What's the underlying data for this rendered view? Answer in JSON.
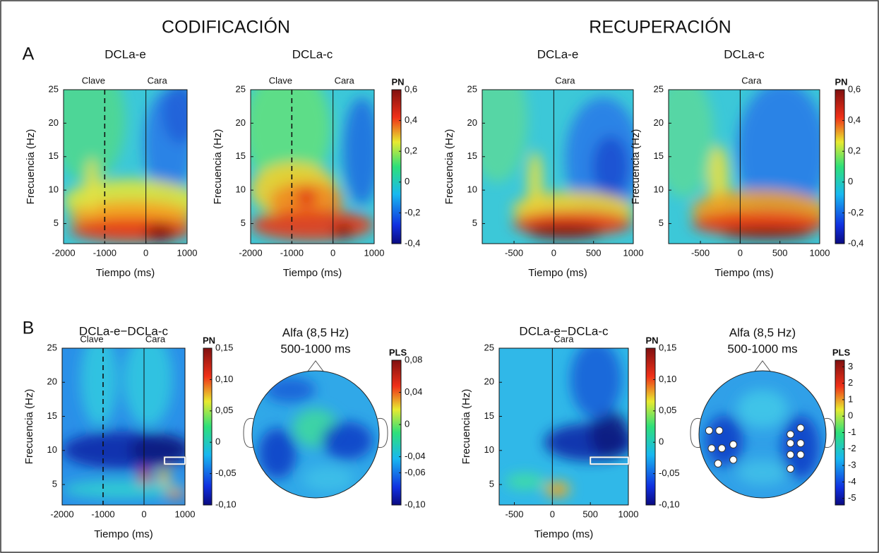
{
  "figure": {
    "headings": [
      "CODIFICACIÓN",
      "RECUPERACIÓN"
    ],
    "panel_labels": [
      "A",
      "B"
    ]
  },
  "chart_data": [
    {
      "type": "heatmap",
      "title": "DCLa-e",
      "xlabel": "Tiempo (ms)",
      "ylabel": "Frecuencia (Hz)",
      "colormap": "jet",
      "xlim": [
        -2000,
        1000
      ],
      "xticks": [
        -2000,
        -1000,
        0,
        1000
      ],
      "ylim": [
        2,
        25
      ],
      "yticks": [
        5,
        10,
        15,
        20,
        25
      ],
      "annotations": [
        {
          "x": -1000,
          "label": "Clave",
          "style": "dashed"
        },
        {
          "x": 0,
          "label": "Cara",
          "style": "solid"
        }
      ]
    },
    {
      "type": "heatmap",
      "title": "DCLa-c",
      "xlabel": "Tiempo (ms)",
      "ylabel": "Frecuencia (Hz)",
      "colormap": "jet",
      "xlim": [
        -2000,
        1000
      ],
      "xticks": [
        -2000,
        -1000,
        0,
        1000
      ],
      "ylim": [
        2,
        25
      ],
      "yticks": [
        5,
        10,
        15,
        20,
        25
      ],
      "annotations": [
        {
          "x": -1000,
          "label": "Clave",
          "style": "dashed"
        },
        {
          "x": 0,
          "label": "Cara",
          "style": "solid"
        }
      ]
    },
    {
      "type": "colorbar",
      "label": "PN",
      "colormap": "jet",
      "ylim": [
        -0.4,
        0.6
      ],
      "yticks": [
        {
          "value": 0.6,
          "label": "0,6"
        },
        {
          "value": 0.4,
          "label": "0,4"
        },
        {
          "value": 0.2,
          "label": "0,2"
        },
        0,
        {
          "value": -0.2,
          "label": "-0,2"
        },
        {
          "value": -0.4,
          "label": "-0,4"
        }
      ]
    },
    {
      "type": "heatmap",
      "title": "DCLa-e",
      "xlabel": "Tiempo (ms)",
      "ylabel": "Frecuencia (Hz)",
      "colormap": "jet",
      "xlim": [
        -900,
        1000
      ],
      "xticks": [
        -500,
        0,
        500,
        1000
      ],
      "ylim": [
        2,
        25
      ],
      "yticks": [
        5,
        10,
        15,
        20,
        25
      ],
      "annotations": [
        {
          "x": 0,
          "label": "Cara",
          "style": "solid"
        }
      ]
    },
    {
      "type": "heatmap",
      "title": "DCLa-c",
      "xlabel": "Tiempo (ms)",
      "ylabel": "Frecuencia (Hz)",
      "colormap": "jet",
      "xlim": [
        -900,
        1000
      ],
      "xticks": [
        -500,
        0,
        500,
        1000
      ],
      "ylim": [
        2,
        25
      ],
      "yticks": [
        5,
        10,
        15,
        20,
        25
      ],
      "annotations": [
        {
          "x": 0,
          "label": "Cara",
          "style": "solid"
        }
      ]
    },
    {
      "type": "colorbar",
      "label": "PN",
      "colormap": "jet",
      "ylim": [
        -0.4,
        0.6
      ],
      "yticks": [
        {
          "value": 0.6,
          "label": "0,6"
        },
        {
          "value": 0.4,
          "label": "0,4"
        },
        {
          "value": 0.2,
          "label": "0,2"
        },
        0,
        {
          "value": -0.2,
          "label": "-0,2"
        },
        {
          "value": -0.4,
          "label": "-0,4"
        }
      ]
    },
    {
      "type": "heatmap",
      "title": "DCLa-e−DCLa-c",
      "xlabel": "Tiempo (ms)",
      "ylabel": "Frecuencia (Hz)",
      "colormap": "jet",
      "xlim": [
        -2000,
        1000
      ],
      "xticks": [
        -2000,
        -1000,
        0,
        1000
      ],
      "ylim": [
        2,
        25
      ],
      "yticks": [
        5,
        10,
        15,
        20,
        25
      ],
      "annotations": [
        {
          "x": -1000,
          "label": "Clave",
          "style": "dashed"
        },
        {
          "x": 0,
          "label": "Cara",
          "style": "solid"
        }
      ],
      "highlight": {
        "xlim": [
          500,
          1000
        ],
        "ylim": [
          8,
          9
        ]
      }
    },
    {
      "type": "colorbar",
      "label": "PN",
      "colormap": "jet",
      "ylim": [
        -0.1,
        0.15
      ],
      "yticks": [
        {
          "value": 0.15,
          "label": "0,15"
        },
        {
          "value": 0.1,
          "label": "0,10"
        },
        {
          "value": 0.05,
          "label": "0,05"
        },
        0,
        {
          "value": -0.05,
          "label": "-0,05"
        },
        {
          "value": -0.1,
          "label": "-0,10"
        }
      ]
    },
    {
      "type": "topomap",
      "title": [
        "Alfa (8,5 Hz)",
        "500-1000 ms"
      ]
    },
    {
      "type": "colorbar",
      "label": "PLS",
      "colormap": "jet",
      "ylim": [
        -0.1,
        0.08
      ],
      "yticks": [
        {
          "value": 0.08,
          "label": "0,08"
        },
        {
          "value": 0.04,
          "label": "0,04"
        },
        0,
        {
          "value": -0.04,
          "label": "-0,04"
        },
        {
          "value": -0.06,
          "label": "-0,06"
        },
        {
          "value": -0.1,
          "label": "-0,10"
        }
      ]
    },
    {
      "type": "heatmap",
      "title": "DCLa-e−DCLa-c",
      "xlabel": "Tiempo (ms)",
      "ylabel": "Frecuencia (Hz)",
      "colormap": "jet",
      "xlim": [
        -700,
        1000
      ],
      "xticks": [
        -500,
        0,
        500,
        1000
      ],
      "ylim": [
        2,
        25
      ],
      "yticks": [
        5,
        10,
        15,
        20,
        25
      ],
      "annotations": [
        {
          "x": 0,
          "label": "Cara",
          "style": "solid"
        }
      ],
      "highlight": {
        "xlim": [
          500,
          1000
        ],
        "ylim": [
          8,
          9
        ]
      }
    },
    {
      "type": "colorbar",
      "label": "PN",
      "colormap": "jet",
      "ylim": [
        -0.1,
        0.15
      ],
      "yticks": [
        {
          "value": 0.15,
          "label": "0,15"
        },
        {
          "value": 0.1,
          "label": "0,10"
        },
        {
          "value": 0.05,
          "label": "0,05"
        },
        0,
        {
          "value": -0.05,
          "label": "-0,05"
        },
        {
          "value": -0.1,
          "label": "-0,10"
        }
      ]
    },
    {
      "type": "topomap",
      "title": [
        "Alfa (8,5 Hz)",
        "500-1000 ms"
      ]
    },
    {
      "type": "colorbar",
      "label": "PLS",
      "colormap": "jet",
      "ylim": [
        -5.4,
        3.4
      ],
      "yticks": [
        3,
        2,
        1,
        0,
        -1,
        -2,
        -3,
        -4,
        -5
      ]
    }
  ]
}
